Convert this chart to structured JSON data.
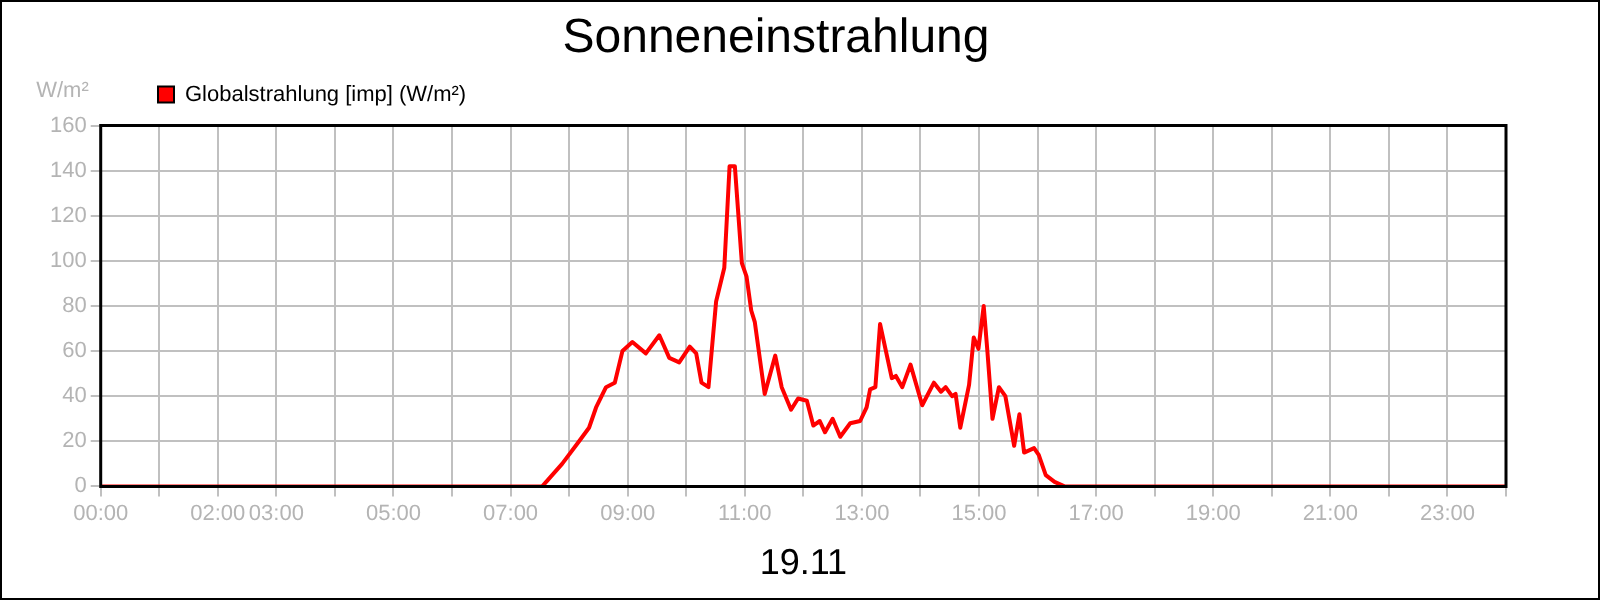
{
  "chart_data": {
    "type": "line",
    "title": "Sonneneinstrahlung",
    "xlabel": "19.11",
    "ylabel": "W/m²",
    "x": [
      0,
      7.54,
      7.88,
      8.17,
      8.34,
      8.46,
      8.63,
      8.78,
      8.91,
      9.08,
      9.31,
      9.54,
      9.71,
      9.88,
      10.06,
      10.17,
      10.26,
      10.38,
      10.51,
      10.65,
      10.74,
      10.83,
      10.95,
      11.03,
      11.11,
      11.17,
      11.34,
      11.52,
      11.63,
      11.79,
      11.91,
      12.06,
      12.17,
      12.28,
      12.37,
      12.5,
      12.63,
      12.8,
      12.97,
      13.08,
      13.14,
      13.23,
      13.31,
      13.51,
      13.58,
      13.69,
      13.83,
      14.03,
      14.23,
      14.35,
      14.43,
      14.54,
      14.6,
      14.68,
      14.83,
      14.91,
      14.99,
      15.08,
      15.14,
      15.23,
      15.34,
      15.45,
      15.6,
      15.69,
      15.77,
      15.94,
      16.02,
      16.14,
      16.29,
      16.46,
      24
    ],
    "series": [
      {
        "name": "Globalstrahlung [imp] (W/m²)",
        "color": "#ff0000",
        "values": [
          0,
          0,
          10,
          20,
          26,
          35,
          44,
          46,
          60,
          64,
          59,
          67,
          57,
          55,
          62,
          59,
          46,
          44,
          82,
          97,
          142,
          142,
          99,
          93,
          78,
          73,
          41,
          58,
          44,
          34,
          39,
          38,
          27,
          29,
          24,
          30,
          22,
          28,
          29,
          35,
          43,
          44,
          72,
          48,
          49,
          44,
          54,
          36,
          46,
          42,
          44,
          40,
          41,
          26,
          45,
          66,
          61,
          80,
          61,
          30,
          44,
          40,
          18,
          32,
          15,
          17,
          14,
          5,
          2,
          0,
          0
        ]
      }
    ],
    "xlim": [
      0,
      24
    ],
    "xticks": [
      {
        "value": 0,
        "label": "00:00"
      },
      {
        "value": 1,
        "label": null
      },
      {
        "value": 2,
        "label": "02:00"
      },
      {
        "value": 3,
        "label": "03:00"
      },
      {
        "value": 4,
        "label": null
      },
      {
        "value": 5,
        "label": "05:00"
      },
      {
        "value": 6,
        "label": null
      },
      {
        "value": 7,
        "label": "07:00"
      },
      {
        "value": 8,
        "label": null
      },
      {
        "value": 9,
        "label": "09:00"
      },
      {
        "value": 10,
        "label": null
      },
      {
        "value": 11,
        "label": "11:00"
      },
      {
        "value": 12,
        "label": null
      },
      {
        "value": 13,
        "label": "13:00"
      },
      {
        "value": 14,
        "label": null
      },
      {
        "value": 15,
        "label": "15:00"
      },
      {
        "value": 16,
        "label": null
      },
      {
        "value": 17,
        "label": "17:00"
      },
      {
        "value": 18,
        "label": null
      },
      {
        "value": 19,
        "label": "19:00"
      },
      {
        "value": 20,
        "label": null
      },
      {
        "value": 21,
        "label": "21:00"
      },
      {
        "value": 22,
        "label": null
      },
      {
        "value": 23,
        "label": "23:00"
      },
      {
        "value": 24,
        "label": null
      }
    ],
    "ylim": [
      0,
      160
    ],
    "yticks": [
      0,
      20,
      40,
      60,
      80,
      100,
      120,
      140,
      160
    ],
    "grid": true,
    "legend": "top left",
    "marker": "none",
    "line_style": "solid"
  }
}
